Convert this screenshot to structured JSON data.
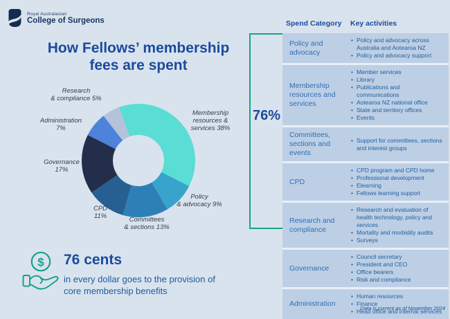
{
  "logo": {
    "line1": "Royal Australasian",
    "line2": "College of Surgeons"
  },
  "title": "How Fellows’ membership\nfees are spent",
  "chart_data": {
    "type": "pie",
    "subtype": "donut",
    "title": "How Fellows’ membership fees are spent",
    "categories": [
      "Membership resources & services",
      "Policy & advocacy",
      "Committees & sections",
      "CPD",
      "Governance",
      "Administration",
      "Research & compliance"
    ],
    "values": [
      38,
      9,
      13,
      11,
      17,
      7,
      5
    ],
    "unit": "%",
    "colors": [
      "#59ddd4",
      "#38a4cc",
      "#2d80b5",
      "#275f92",
      "#232e4b",
      "#4d83da",
      "#b5c3da"
    ],
    "start_angle_deg": -20,
    "legend_position": "around-labels",
    "labels": [
      "Membership\nresources &\nservices 38%",
      "Policy\n& advocacy 9%",
      "Committees\n& sections 13%",
      "CPD\n11%",
      "Governance\n17%",
      "Administration\n7%",
      "Research\n& compliance 5%"
    ]
  },
  "highlight": {
    "percent": "76%",
    "color": "#16a28a"
  },
  "table": {
    "headers": [
      "Spend Category",
      "Key activities"
    ],
    "rows": [
      {
        "category": "Policy and advocacy",
        "highlighted": true,
        "activities": [
          "Policy and advocacy across Australia and Aotearoa NZ",
          "Policy and advocacy support"
        ]
      },
      {
        "category": "Membership resources and services",
        "highlighted": true,
        "activities": [
          "Member services",
          "Library",
          "Publications and communications",
          "Aotearoa NZ national office",
          "State and territory offices",
          "Events"
        ]
      },
      {
        "category": "Committees, sections and events",
        "highlighted": true,
        "activities": [
          "Support for committees, sections and interest groups"
        ]
      },
      {
        "category": "CPD",
        "highlighted": true,
        "activities": [
          "CPD program and CPD home",
          "Professional development",
          "Elearning",
          "Fellows learning support"
        ]
      },
      {
        "category": "Research and compliance",
        "highlighted": true,
        "activities": [
          "Research and evaluation of health technology, policy and services",
          "Mortality and morbidity audits",
          "Surveys"
        ]
      },
      {
        "category": "Governance",
        "highlighted": false,
        "activities": [
          "Council secretary",
          "President and CEO",
          "Office bearers",
          "Risk and compliance"
        ]
      },
      {
        "category": "Administration",
        "highlighted": false,
        "activities": [
          "Human resources",
          "Finance",
          "Head office and internal services"
        ]
      }
    ]
  },
  "callout": {
    "headline": "76 cents",
    "text": "in every dollar goes to the provision of\ncore membership benefits",
    "dollar_glyph": "$"
  },
  "footnote": "Data is current as of November 2024"
}
